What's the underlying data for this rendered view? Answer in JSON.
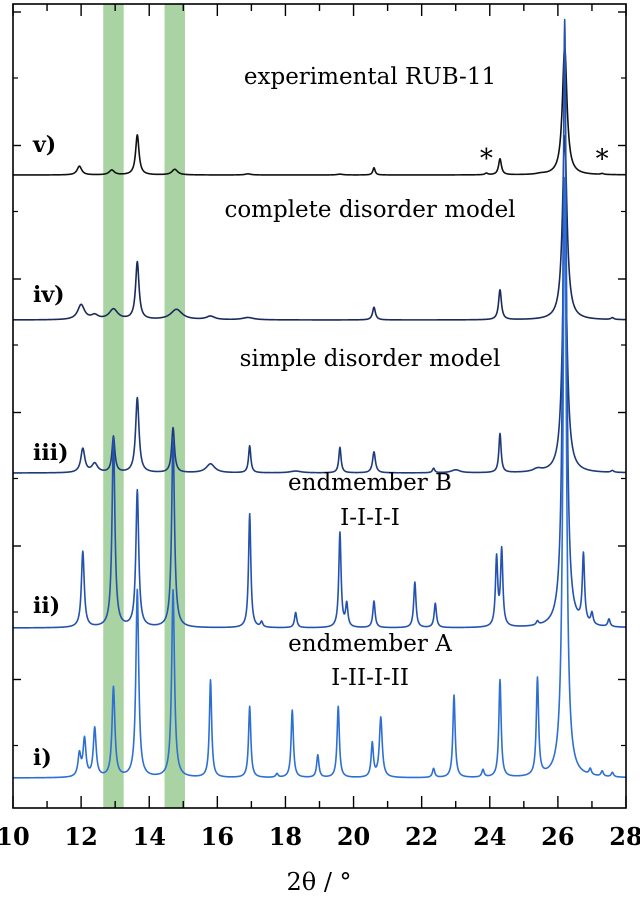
{
  "chart_data": {
    "type": "line",
    "xlabel": "2θ / °",
    "ylabel": "",
    "xlim": [
      10,
      28
    ],
    "x_ticks": [
      "10",
      "12",
      "14",
      "16",
      "18",
      "20",
      "22",
      "24",
      "26",
      "28"
    ],
    "highlight_bands": [
      {
        "x0": 12.65,
        "x1": 13.25,
        "color": "#a9d3a3"
      },
      {
        "x0": 14.45,
        "x1": 15.05,
        "color": "#a9d3a3"
      }
    ],
    "series": [
      {
        "id": "v",
        "label": "v)",
        "title": "experimental RUB-11",
        "color": "#111111",
        "peaks": [
          [
            11.95,
            0.55,
            0.08
          ],
          [
            12.9,
            0.3,
            0.09
          ],
          [
            13.65,
            2.5,
            0.06
          ],
          [
            14.75,
            0.35,
            0.1
          ],
          [
            16.9,
            0.07,
            0.1
          ],
          [
            19.6,
            0.05,
            0.1
          ],
          [
            20.6,
            0.45,
            0.04
          ],
          [
            23.9,
            0.1,
            0.05
          ],
          [
            24.3,
            1.0,
            0.05
          ],
          [
            25.5,
            0.05,
            0.15
          ],
          [
            26.2,
            8.0,
            0.08
          ],
          [
            27.3,
            0.06,
            0.05
          ]
        ],
        "annotations": [
          {
            "text": "*",
            "x": 23.9
          },
          {
            "text": "*",
            "x": 27.3
          }
        ]
      },
      {
        "id": "iv",
        "label": "iv)",
        "title": "complete disorder model",
        "color": "#1a2a5a",
        "peaks": [
          [
            12.0,
            0.65,
            0.12
          ],
          [
            12.4,
            0.18,
            0.12
          ],
          [
            12.95,
            0.45,
            0.15
          ],
          [
            13.65,
            2.5,
            0.06
          ],
          [
            14.8,
            0.45,
            0.2
          ],
          [
            15.8,
            0.15,
            0.15
          ],
          [
            16.9,
            0.1,
            0.2
          ],
          [
            20.6,
            0.55,
            0.05
          ],
          [
            24.3,
            1.3,
            0.05
          ],
          [
            26.2,
            8.0,
            0.08
          ],
          [
            27.6,
            0.08,
            0.05
          ]
        ],
        "annotations": []
      },
      {
        "id": "iii",
        "label": "iii)",
        "title": "simple disorder model",
        "color": "#1d3a7a",
        "peaks": [
          [
            12.05,
            0.8,
            0.07
          ],
          [
            12.4,
            0.3,
            0.1
          ],
          [
            12.95,
            1.2,
            0.05
          ],
          [
            13.65,
            2.5,
            0.06
          ],
          [
            14.7,
            1.5,
            0.05
          ],
          [
            15.8,
            0.3,
            0.15
          ],
          [
            16.95,
            0.9,
            0.04
          ],
          [
            18.3,
            0.06,
            0.2
          ],
          [
            19.6,
            0.85,
            0.04
          ],
          [
            20.6,
            0.7,
            0.05
          ],
          [
            22.35,
            0.15,
            0.04
          ],
          [
            23.0,
            0.1,
            0.15
          ],
          [
            24.3,
            1.3,
            0.04
          ],
          [
            25.4,
            0.1,
            0.15
          ],
          [
            26.2,
            8.0,
            0.08
          ],
          [
            27.6,
            0.06,
            0.05
          ]
        ],
        "annotations": []
      },
      {
        "id": "ii",
        "label": "ii)",
        "title": "endmember B",
        "subtitle": "I-I-I-I",
        "color": "#2352b0",
        "peaks": [
          [
            12.05,
            1.0,
            0.05
          ],
          [
            12.95,
            2.5,
            0.05
          ],
          [
            13.65,
            1.8,
            0.05
          ],
          [
            14.7,
            2.5,
            0.05
          ],
          [
            16.95,
            1.5,
            0.04
          ],
          [
            17.3,
            0.07,
            0.04
          ],
          [
            18.3,
            0.2,
            0.04
          ],
          [
            19.6,
            1.25,
            0.04
          ],
          [
            19.8,
            0.3,
            0.04
          ],
          [
            20.6,
            0.35,
            0.04
          ],
          [
            21.8,
            0.6,
            0.04
          ],
          [
            22.4,
            0.32,
            0.04
          ],
          [
            24.2,
            0.9,
            0.04
          ],
          [
            24.35,
            1.0,
            0.04
          ],
          [
            25.4,
            0.05,
            0.04
          ],
          [
            26.2,
            8.0,
            0.06
          ],
          [
            26.75,
            0.9,
            0.04
          ],
          [
            27.0,
            0.15,
            0.04
          ],
          [
            27.5,
            0.1,
            0.04
          ]
        ],
        "annotations": []
      },
      {
        "id": "i",
        "label": "i)",
        "title": "endmember A",
        "subtitle": "I-II-I-II",
        "color": "#2d6fd4",
        "peaks": [
          [
            11.95,
            0.3,
            0.05
          ],
          [
            12.1,
            0.5,
            0.05
          ],
          [
            12.4,
            0.65,
            0.05
          ],
          [
            12.95,
            1.2,
            0.05
          ],
          [
            13.65,
            2.5,
            0.05
          ],
          [
            14.7,
            2.5,
            0.05
          ],
          [
            15.8,
            1.3,
            0.04
          ],
          [
            16.95,
            0.95,
            0.04
          ],
          [
            17.75,
            0.05,
            0.04
          ],
          [
            18.2,
            0.9,
            0.04
          ],
          [
            18.95,
            0.3,
            0.04
          ],
          [
            19.55,
            0.95,
            0.04
          ],
          [
            20.55,
            0.45,
            0.04
          ],
          [
            20.8,
            0.8,
            0.05
          ],
          [
            22.35,
            0.12,
            0.04
          ],
          [
            22.95,
            1.1,
            0.04
          ],
          [
            23.8,
            0.1,
            0.04
          ],
          [
            24.3,
            1.3,
            0.04
          ],
          [
            25.4,
            1.3,
            0.04
          ],
          [
            26.2,
            8.0,
            0.06
          ],
          [
            26.95,
            0.08,
            0.04
          ],
          [
            27.3,
            0.07,
            0.04
          ],
          [
            27.6,
            0.06,
            0.04
          ]
        ],
        "annotations": []
      }
    ]
  }
}
